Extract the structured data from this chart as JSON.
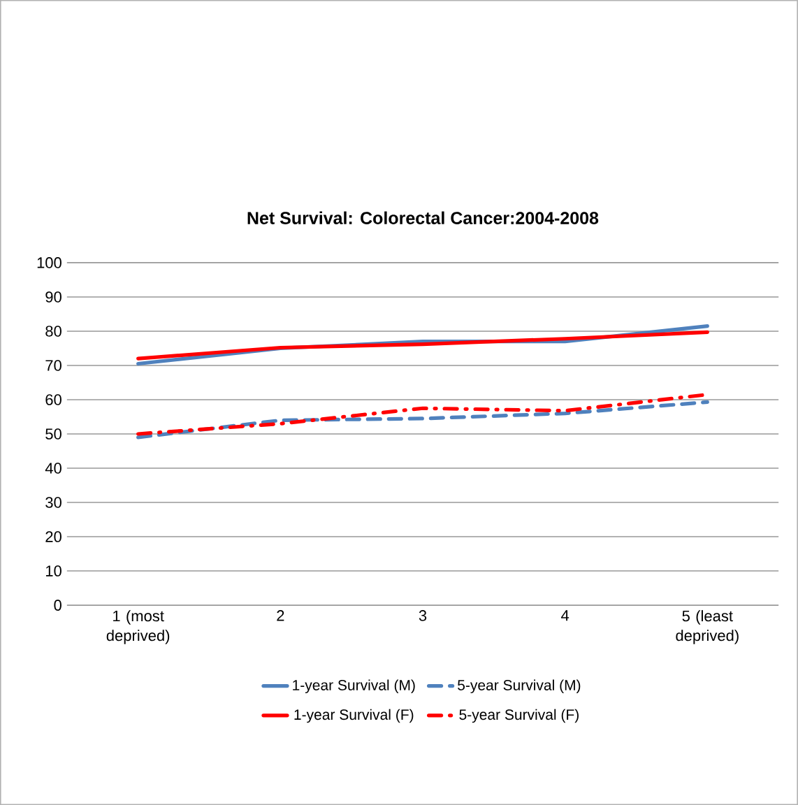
{
  "chart_data": {
    "type": "line",
    "title": "Net Survival: Colorectal Cancer:2004-2008",
    "categories": [
      "1 (most deprived)",
      "2",
      "3",
      "4",
      "5 (least deprived)"
    ],
    "series": [
      {
        "name": "1-year Survival (M)",
        "color": "#4f81bd",
        "line_style": "solid",
        "values": [
          70.5,
          75,
          77,
          77,
          81.5
        ]
      },
      {
        "name": "5-year Survival (M)",
        "color": "#4f81bd",
        "line_style": "dashed",
        "values": [
          49,
          54,
          54.5,
          56,
          59.3
        ]
      },
      {
        "name": "1-year Survival (F)",
        "color": "#ff0000",
        "line_style": "solid",
        "values": [
          72,
          75.2,
          76.2,
          77.8,
          79.7
        ]
      },
      {
        "name": "5-year Survival (F)",
        "color": "#ff0000",
        "line_style": "dashdot",
        "values": [
          50,
          53,
          57.5,
          56.8,
          61.5
        ]
      }
    ],
    "ylim": [
      0,
      100
    ],
    "yticks": [
      0,
      10,
      20,
      30,
      40,
      50,
      60,
      70,
      80,
      90,
      100
    ],
    "grid": "y",
    "legend": "bottom",
    "marker": "none"
  }
}
